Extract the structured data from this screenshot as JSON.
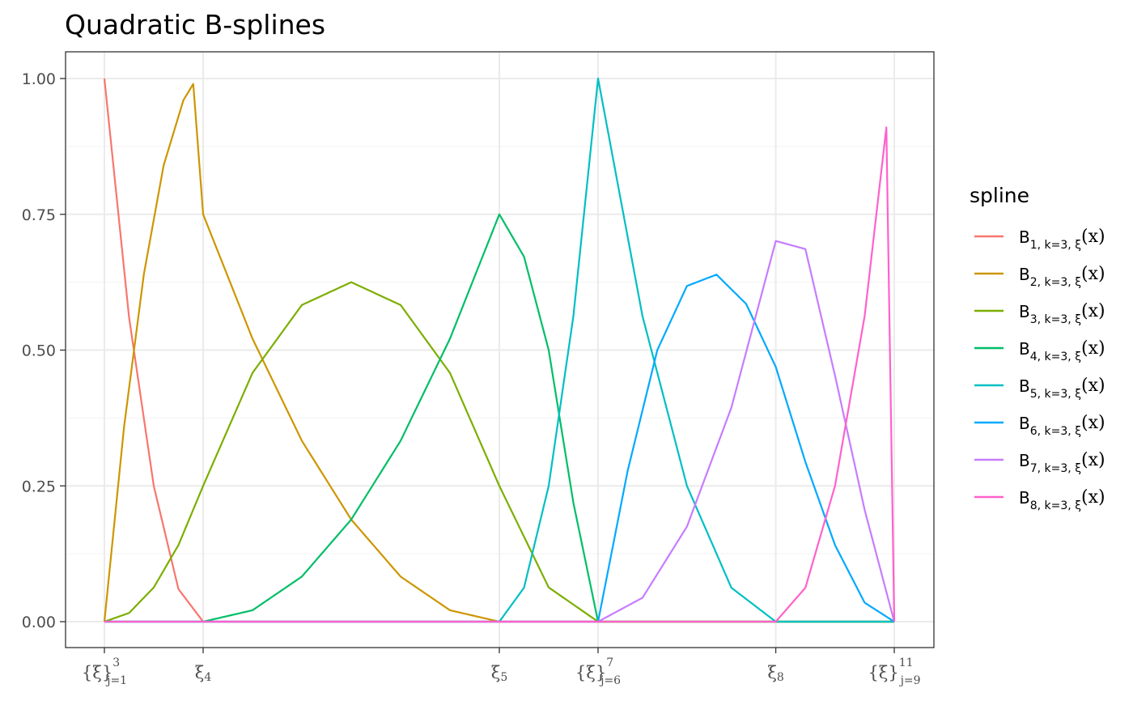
{
  "chart_data": {
    "type": "line",
    "title": "Quadratic B-splines",
    "xlabel": "",
    "ylabel": "",
    "ylim": [
      0,
      1
    ],
    "y_ticks": [
      "0.00",
      "0.25",
      "0.50",
      "0.75",
      "1.00"
    ],
    "y_tick_values": [
      0,
      0.25,
      0.5,
      0.75,
      1
    ],
    "x_ticks": [
      {
        "value": 0,
        "base": "{ξ}",
        "sup": "3",
        "sub": "j=1"
      },
      {
        "value": 1,
        "base": "ξ",
        "sup": "",
        "sub": "4"
      },
      {
        "value": 4,
        "base": "ξ",
        "sup": "",
        "sub": "5"
      },
      {
        "value": 5,
        "base": "{ξ}",
        "sup": "7",
        "sub": "j=6"
      },
      {
        "value": 6.8,
        "base": "ξ",
        "sup": "",
        "sub": "8"
      },
      {
        "value": 8,
        "base": "{ξ}",
        "sup": "11",
        "sub": "j=9"
      }
    ],
    "grid": true,
    "legend_title": "spline",
    "legend_position": "right",
    "knots": [
      0,
      0,
      0,
      1,
      4,
      5,
      5,
      6.8,
      8,
      8,
      8
    ],
    "series": [
      {
        "name": "B",
        "index": "1",
        "sub_rest": ", k=3, ξ",
        "suffix": "(x)",
        "color": "#F8766D",
        "x": [
          0,
          0.25,
          0.5,
          0.75,
          1.0,
          1.5,
          2.5,
          4.0,
          5.0,
          6.8,
          7.92,
          8.0
        ],
        "y": [
          1.0,
          0.56,
          0.25,
          0.06,
          0,
          0,
          0,
          0,
          0,
          0,
          0,
          0
        ]
      },
      {
        "name": "B",
        "index": "2",
        "sub_rest": ", k=3, ξ",
        "suffix": "(x)",
        "color": "#CD9600",
        "x": [
          0,
          0.2,
          0.4,
          0.6,
          0.8,
          0.9,
          1.0,
          1.5,
          2.0,
          2.5,
          3.0,
          3.5,
          4.0,
          5.0,
          8.0
        ],
        "y": [
          0,
          0.36,
          0.64,
          0.84,
          0.96,
          0.99,
          0.75,
          0.521,
          0.333,
          0.188,
          0.083,
          0.021,
          0,
          0,
          0
        ]
      },
      {
        "name": "B",
        "index": "3",
        "sub_rest": ", k=3, ξ",
        "suffix": "(x)",
        "color": "#7CAE00",
        "x": [
          0,
          0.25,
          0.5,
          0.75,
          1.0,
          1.5,
          2.0,
          2.5,
          3.0,
          3.5,
          4.0,
          4.5,
          5.0,
          6.8,
          8.0
        ],
        "y": [
          0,
          0.016,
          0.063,
          0.141,
          0.25,
          0.458,
          0.583,
          0.625,
          0.583,
          0.458,
          0.25,
          0.063,
          0,
          0,
          0
        ]
      },
      {
        "name": "B",
        "index": "4",
        "sub_rest": ", k=3, ξ",
        "suffix": "(x)",
        "color": "#00BE67",
        "x": [
          0,
          1.0,
          1.5,
          2.0,
          2.5,
          3.0,
          3.5,
          4.0,
          4.25,
          4.5,
          4.75,
          5.0,
          6.8,
          8.0
        ],
        "y": [
          0,
          0,
          0.021,
          0.083,
          0.188,
          0.333,
          0.521,
          0.75,
          0.672,
          0.5,
          0.219,
          0,
          0,
          0
        ]
      },
      {
        "name": "B",
        "index": "5",
        "sub_rest": ", k=3, ξ",
        "suffix": "(x)",
        "color": "#00BFC4",
        "x": [
          0,
          4.0,
          4.25,
          4.5,
          4.75,
          5.0,
          5.45,
          5.9,
          6.35,
          6.8,
          8.0
        ],
        "y": [
          0,
          0,
          0.0625,
          0.25,
          0.5625,
          1.0,
          0.5625,
          0.25,
          0.0625,
          0,
          0
        ]
      },
      {
        "name": "B",
        "index": "6",
        "sub_rest": ", k=3, ξ",
        "suffix": "(x)",
        "color": "#00A9FF",
        "x": [
          0,
          5.0,
          5.3,
          5.6,
          5.9,
          6.2,
          6.5,
          6.8,
          7.1,
          7.4,
          7.7,
          8.0
        ],
        "y": [
          0,
          0,
          0.278,
          0.5,
          0.618,
          0.639,
          0.585,
          0.469,
          0.294,
          0.141,
          0.035,
          0
        ]
      },
      {
        "name": "B",
        "index": "7",
        "sub_rest": ", k=3, ξ",
        "suffix": "(x)",
        "color": "#C77CFF",
        "x": [
          0,
          5.0,
          5.45,
          5.9,
          6.35,
          6.8,
          7.1,
          7.4,
          7.7,
          8.0
        ],
        "y": [
          0,
          0,
          0.044,
          0.175,
          0.394,
          0.701,
          0.686,
          0.453,
          0.206,
          0
        ]
      },
      {
        "name": "B",
        "index": "8",
        "sub_rest": ", k=3, ξ",
        "suffix": "(x)",
        "color": "#FF61CC",
        "x": [
          0,
          6.8,
          7.1,
          7.4,
          7.7,
          7.92,
          8.0
        ],
        "y": [
          0,
          0,
          0.0625,
          0.25,
          0.5625,
          0.91,
          0
        ]
      }
    ]
  }
}
